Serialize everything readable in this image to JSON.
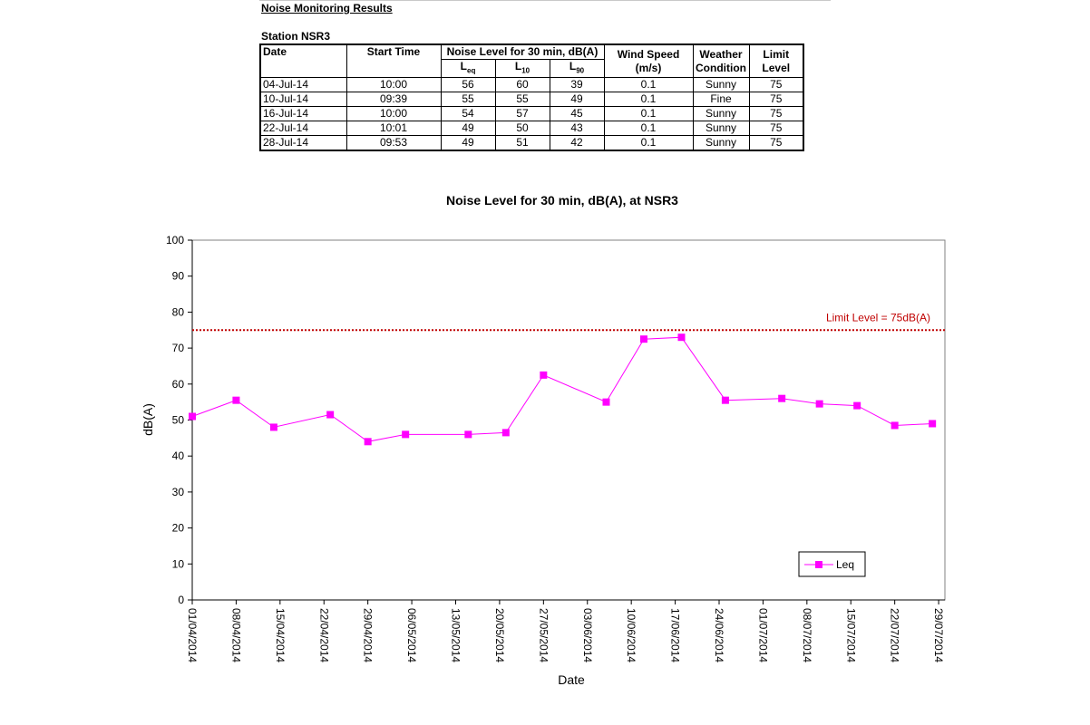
{
  "report": {
    "title": "Noise Monitoring Results",
    "station": "Station NSR3"
  },
  "table": {
    "headers": {
      "date": "Date",
      "start_time": "Start Time",
      "noise_level": "Noise Level for 30 min, dB(A)",
      "leq_main": "L",
      "leq_sub": "eq",
      "l10_main": "L",
      "l10_sub": "10",
      "l90_main": "L",
      "l90_sub": "90",
      "wind_speed_1": "Wind Speed",
      "wind_speed_2": "(m/s)",
      "weather_1": "Weather",
      "weather_2": "Condition",
      "limit_1": "Limit",
      "limit_2": "Level"
    },
    "rows": [
      {
        "date": "04-Jul-14",
        "time": "10:00",
        "leq": "56",
        "l10": "60",
        "l90": "39",
        "wind": "0.1",
        "weather": "Sunny",
        "limit": "75"
      },
      {
        "date": "10-Jul-14",
        "time": "09:39",
        "leq": "55",
        "l10": "55",
        "l90": "49",
        "wind": "0.1",
        "weather": "Fine",
        "limit": "75"
      },
      {
        "date": "16-Jul-14",
        "time": "10:00",
        "leq": "54",
        "l10": "57",
        "l90": "45",
        "wind": "0.1",
        "weather": "Sunny",
        "limit": "75"
      },
      {
        "date": "22-Jul-14",
        "time": "10:01",
        "leq": "49",
        "l10": "50",
        "l90": "43",
        "wind": "0.1",
        "weather": "Sunny",
        "limit": "75"
      },
      {
        "date": "28-Jul-14",
        "time": "09:53",
        "leq": "49",
        "l10": "51",
        "l90": "42",
        "wind": "0.1",
        "weather": "Sunny",
        "limit": "75"
      }
    ]
  },
  "chart_data": {
    "type": "line",
    "title": "Noise Level for 30 min, dB(A), at NSR3",
    "xlabel": "Date",
    "ylabel": "dB(A)",
    "ylim": [
      0,
      100
    ],
    "yticks": [
      0,
      10,
      20,
      30,
      40,
      50,
      60,
      70,
      80,
      90,
      100
    ],
    "xlim": [
      "2014-04-01",
      "2014-07-30"
    ],
    "xticks": [
      "2014-04-01",
      "2014-04-08",
      "2014-04-15",
      "2014-04-22",
      "2014-04-29",
      "2014-05-06",
      "2014-05-13",
      "2014-05-20",
      "2014-05-27",
      "2014-06-03",
      "2014-06-10",
      "2014-06-17",
      "2014-06-24",
      "2014-07-01",
      "2014-07-08",
      "2014-07-15",
      "2014-07-22",
      "2014-07-29"
    ],
    "xtick_labels": [
      "01/04/2014",
      "08/04/2014",
      "15/04/2014",
      "22/04/2014",
      "29/04/2014",
      "06/05/2014",
      "13/05/2014",
      "20/05/2014",
      "27/05/2014",
      "03/06/2014",
      "10/06/2014",
      "17/06/2014",
      "24/06/2014",
      "01/07/2014",
      "08/07/2014",
      "15/07/2014",
      "22/07/2014",
      "29/07/2014"
    ],
    "grid": false,
    "legend_position": "bottom-right",
    "series": [
      {
        "name": "Leq",
        "color": "#ff00ff",
        "marker": "square",
        "x": [
          "2014-04-01",
          "2014-04-08",
          "2014-04-14",
          "2014-04-23",
          "2014-04-29",
          "2014-05-05",
          "2014-05-15",
          "2014-05-21",
          "2014-05-27",
          "2014-06-06",
          "2014-06-12",
          "2014-06-18",
          "2014-06-25",
          "2014-07-04",
          "2014-07-10",
          "2014-07-16",
          "2014-07-22",
          "2014-07-28"
        ],
        "y": [
          51,
          55.5,
          48,
          51.5,
          44,
          46,
          46,
          46.5,
          62.5,
          55,
          72.5,
          73,
          55.5,
          56,
          54.5,
          54,
          48.5,
          49
        ]
      }
    ],
    "limit_line": {
      "value": 75,
      "label": "Limit Level = 75dB(A)",
      "color": "#c00000"
    }
  }
}
